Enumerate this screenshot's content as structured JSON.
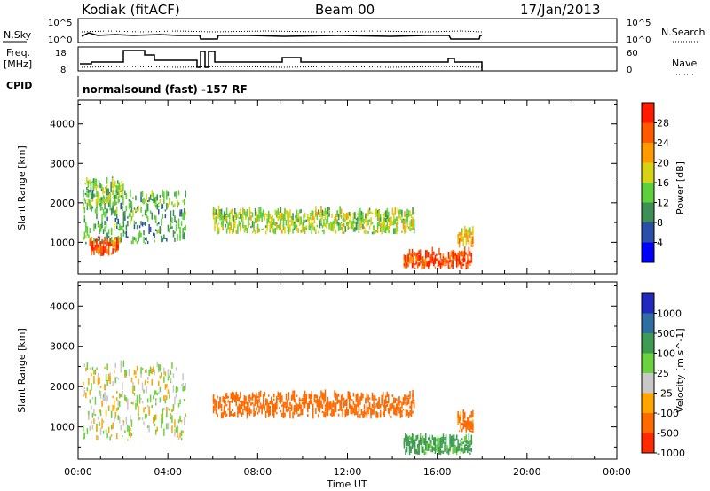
{
  "header": {
    "station": "Kodiak (fitACF)",
    "beam": "Beam 00",
    "date": "17/Jan/2013"
  },
  "noise_panel": {
    "left_label": "N.Sky",
    "left_ticks": [
      "10^5",
      "10^0"
    ],
    "right_ticks": [
      "10^5",
      "10^0"
    ],
    "right_label": "N.Search"
  },
  "freq_panel": {
    "left_label_line1": "Freq.",
    "left_label_line2": "[MHz]",
    "left_ticks": [
      "18",
      "8"
    ],
    "right_ticks": [
      "60",
      "0"
    ],
    "right_label": "Nave"
  },
  "cpid_panel": {
    "label": "CPID",
    "text": "normalsound (fast) -157 RF"
  },
  "chart_data": [
    {
      "type": "heatmap",
      "title": "",
      "quantity": "Power",
      "ylabel": "Slant Range [km]",
      "ylim": [
        200,
        4600
      ],
      "yticks": [
        "1000",
        "2000",
        "3000",
        "4000"
      ],
      "xlim": [
        0,
        24
      ],
      "colorbar": {
        "label": "Power [dB]",
        "ticks": [
          "4",
          "8",
          "12",
          "16",
          "20",
          "24",
          "28"
        ],
        "range": [
          0,
          32
        ]
      },
      "echo_regions": [
        {
          "t_start": 0.5,
          "t_end": 1.8,
          "range_min": 650,
          "range_max": 1000,
          "value": 27
        },
        {
          "t_start": 0.2,
          "t_end": 4.8,
          "range_min": 950,
          "range_max": 2200,
          "value": 12
        },
        {
          "t_start": 0.3,
          "t_end": 2.0,
          "range_min": 1900,
          "range_max": 2500,
          "value": 14
        },
        {
          "t_start": 6.0,
          "t_end": 15.0,
          "range_min": 1200,
          "range_max": 1750,
          "value": 16
        },
        {
          "t_start": 14.5,
          "t_end": 17.5,
          "range_min": 300,
          "range_max": 700,
          "value": 27
        },
        {
          "t_start": 16.9,
          "t_end": 17.6,
          "range_min": 850,
          "range_max": 1250,
          "value": 20
        }
      ]
    },
    {
      "type": "heatmap",
      "title": "",
      "quantity": "Velocity",
      "ylabel": "Slant Range [km]",
      "ylim": [
        200,
        4600
      ],
      "yticks": [
        "1000",
        "2000",
        "3000",
        "4000"
      ],
      "xlim": [
        0,
        24
      ],
      "xlabel": "Time UT",
      "xticks": [
        "00:00",
        "04:00",
        "08:00",
        "12:00",
        "16:00",
        "20:00",
        "00:00"
      ],
      "colorbar": {
        "label": "Velocity [m s^-1]",
        "ticks": [
          "1000",
          "500",
          "100",
          "25",
          "-25",
          "-100",
          "-500",
          "-1000"
        ]
      },
      "echo_regions": [
        {
          "t_start": 0.2,
          "t_end": 4.8,
          "range_min": 650,
          "range_max": 2500,
          "value": 0
        },
        {
          "t_start": 6.0,
          "t_end": 15.0,
          "range_min": 1200,
          "range_max": 1750,
          "value": -200
        },
        {
          "t_start": 14.5,
          "t_end": 17.5,
          "range_min": 300,
          "range_max": 700,
          "value": 150
        },
        {
          "t_start": 16.9,
          "t_end": 17.6,
          "range_min": 850,
          "range_max": 1250,
          "value": -150
        }
      ]
    }
  ],
  "colors": {
    "power_scale": [
      "#0000ff",
      "#2a4fa8",
      "#3d8f55",
      "#5fcf3c",
      "#d7d214",
      "#ff9a00",
      "#ff5a00",
      "#ff1a00"
    ],
    "velocity_scale": [
      "#2229bf",
      "#2e6ea0",
      "#3e9b52",
      "#6bd13e",
      "#c8c8c8",
      "#ffa500",
      "#ff6a00",
      "#ff2a00"
    ],
    "axis": "#000000"
  }
}
